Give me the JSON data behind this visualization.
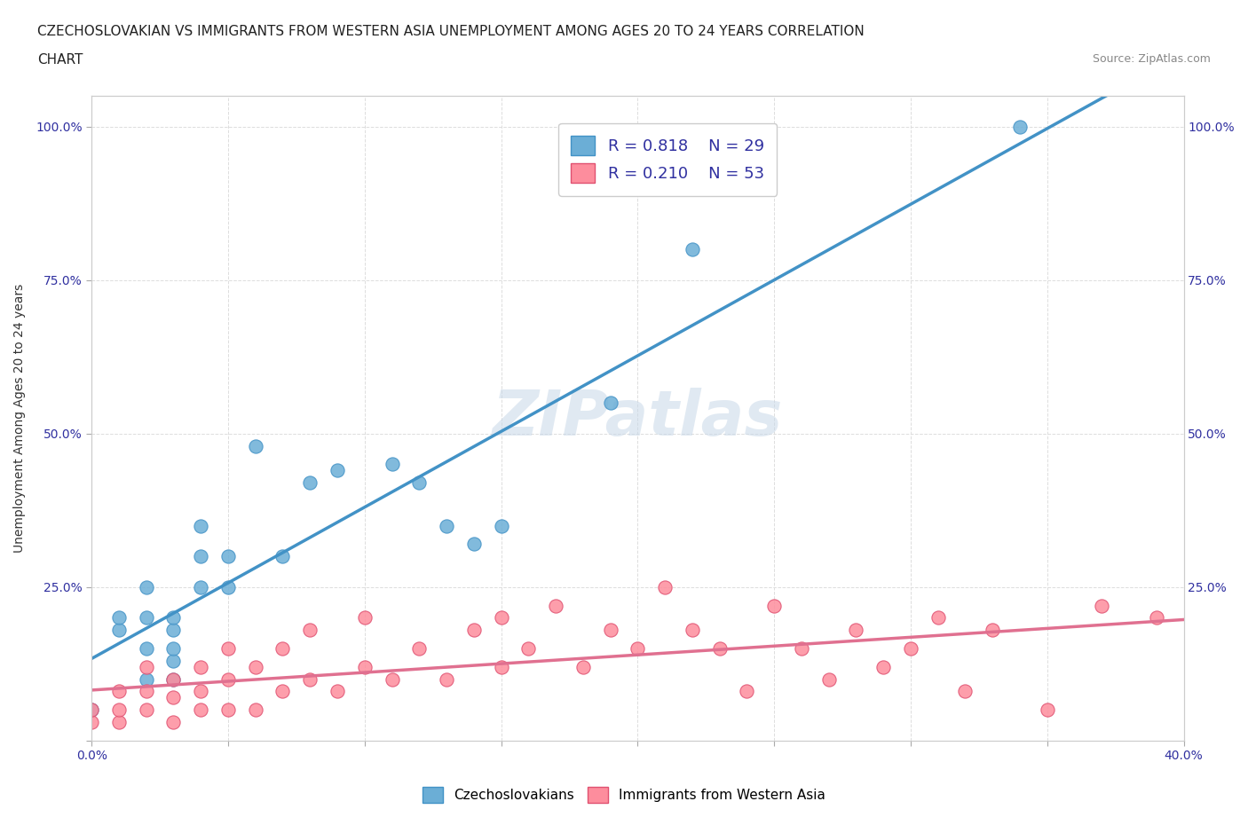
{
  "title_line1": "CZECHOSLOVAKIAN VS IMMIGRANTS FROM WESTERN ASIA UNEMPLOYMENT AMONG AGES 20 TO 24 YEARS CORRELATION",
  "title_line2": "CHART",
  "source_text": "Source: ZipAtlas.com",
  "ylabel": "Unemployment Among Ages 20 to 24 years",
  "xmin": 0.0,
  "xmax": 0.4,
  "ymin": 0.0,
  "ymax": 1.05,
  "blue_color": "#6baed6",
  "pink_color": "#fd8d9d",
  "blue_line_color": "#4292c6",
  "pink_line_color": "#e07090",
  "legend_R_blue": "R = 0.818",
  "legend_N_blue": "N = 29",
  "legend_R_pink": "R = 0.210",
  "legend_N_pink": "N = 53",
  "watermark": "ZIPatlas",
  "blue_scatter_x": [
    0.0,
    0.01,
    0.01,
    0.02,
    0.02,
    0.02,
    0.02,
    0.03,
    0.03,
    0.03,
    0.03,
    0.03,
    0.04,
    0.04,
    0.04,
    0.05,
    0.05,
    0.06,
    0.07,
    0.08,
    0.09,
    0.11,
    0.12,
    0.13,
    0.14,
    0.15,
    0.19,
    0.22,
    0.34
  ],
  "blue_scatter_y": [
    0.05,
    0.18,
    0.2,
    0.1,
    0.15,
    0.2,
    0.25,
    0.1,
    0.13,
    0.15,
    0.18,
    0.2,
    0.25,
    0.3,
    0.35,
    0.25,
    0.3,
    0.48,
    0.3,
    0.42,
    0.44,
    0.45,
    0.42,
    0.35,
    0.32,
    0.35,
    0.55,
    0.8,
    1.0
  ],
  "pink_scatter_x": [
    0.0,
    0.0,
    0.01,
    0.01,
    0.01,
    0.02,
    0.02,
    0.02,
    0.03,
    0.03,
    0.03,
    0.04,
    0.04,
    0.04,
    0.05,
    0.05,
    0.05,
    0.06,
    0.06,
    0.07,
    0.07,
    0.08,
    0.08,
    0.09,
    0.1,
    0.1,
    0.11,
    0.12,
    0.13,
    0.14,
    0.15,
    0.15,
    0.16,
    0.17,
    0.18,
    0.19,
    0.2,
    0.21,
    0.22,
    0.23,
    0.24,
    0.25,
    0.26,
    0.27,
    0.28,
    0.29,
    0.3,
    0.31,
    0.32,
    0.33,
    0.35,
    0.37,
    0.39
  ],
  "pink_scatter_y": [
    0.03,
    0.05,
    0.03,
    0.05,
    0.08,
    0.05,
    0.08,
    0.12,
    0.03,
    0.07,
    0.1,
    0.05,
    0.08,
    0.12,
    0.05,
    0.1,
    0.15,
    0.05,
    0.12,
    0.08,
    0.15,
    0.1,
    0.18,
    0.08,
    0.12,
    0.2,
    0.1,
    0.15,
    0.1,
    0.18,
    0.12,
    0.2,
    0.15,
    0.22,
    0.12,
    0.18,
    0.15,
    0.25,
    0.18,
    0.15,
    0.08,
    0.22,
    0.15,
    0.1,
    0.18,
    0.12,
    0.15,
    0.2,
    0.08,
    0.18,
    0.05,
    0.22,
    0.2
  ],
  "background_color": "#ffffff",
  "grid_color": "#dddddd",
  "title_fontsize": 11,
  "axis_fontsize": 10,
  "tick_fontsize": 10,
  "legend_fontsize": 13
}
